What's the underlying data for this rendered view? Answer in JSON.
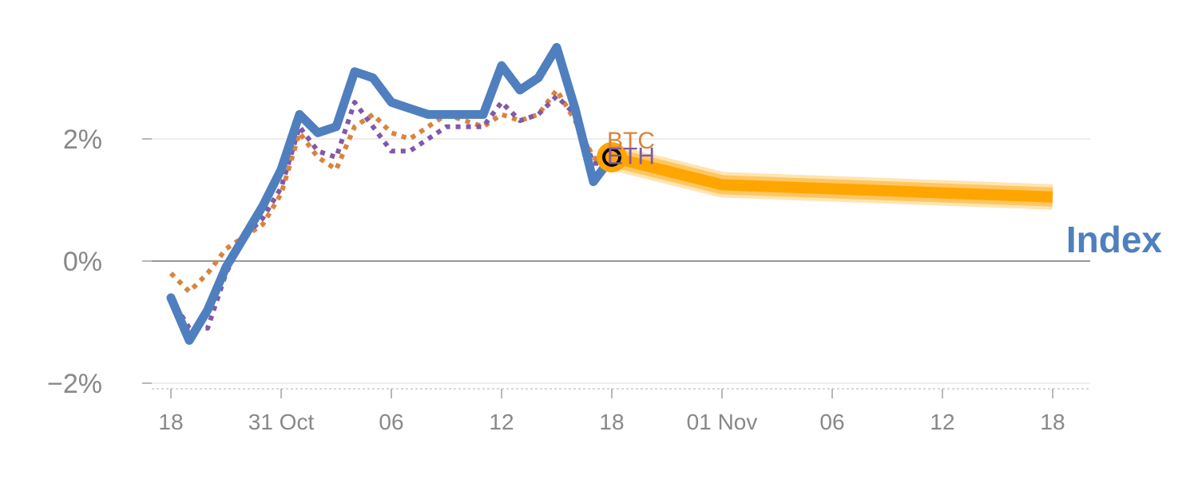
{
  "chart_data": {
    "type": "line",
    "title": "",
    "xlabel": "",
    "ylabel": "",
    "ylim": [
      -2,
      4
    ],
    "y_unit": "%",
    "grid": true,
    "y_ticks": [
      {
        "value": -2,
        "label": "−2%"
      },
      {
        "value": 0,
        "label": "0%"
      },
      {
        "value": 2,
        "label": "2%"
      }
    ],
    "x_ticks": [
      {
        "x": 0,
        "label": "18"
      },
      {
        "x": 6,
        "label": "31 Oct"
      },
      {
        "x": 12,
        "label": "06"
      },
      {
        "x": 18,
        "label": "12"
      },
      {
        "x": 24,
        "label": "18"
      },
      {
        "x": 30,
        "label": "01 Nov"
      },
      {
        "x": 36,
        "label": "06"
      },
      {
        "x": 42,
        "label": "12"
      },
      {
        "x": 48,
        "label": "18"
      }
    ],
    "series": [
      {
        "name": "BTC",
        "style": "dotted",
        "color": "#D9843B",
        "x": [
          0,
          1,
          2,
          3,
          4,
          5,
          6,
          7,
          8,
          9,
          10,
          11,
          12,
          13,
          14,
          15,
          16,
          17,
          18,
          19,
          20,
          21,
          22,
          23,
          24
        ],
        "values": [
          -0.2,
          -0.5,
          -0.2,
          0.2,
          0.4,
          0.6,
          1.1,
          2.1,
          1.7,
          1.5,
          2.2,
          2.4,
          2.1,
          2.0,
          2.2,
          2.4,
          2.3,
          2.2,
          2.4,
          2.3,
          2.4,
          2.8,
          2.3,
          1.7,
          1.5
        ]
      },
      {
        "name": "ETH",
        "style": "dotted",
        "color": "#8159A8",
        "x": [
          0,
          1,
          2,
          3,
          4,
          5,
          6,
          7,
          8,
          9,
          10,
          11,
          12,
          13,
          14,
          15,
          16,
          17,
          18,
          19,
          20,
          21,
          22,
          23,
          24
        ],
        "values": [
          -0.6,
          -1.1,
          -1.1,
          -0.2,
          0.4,
          0.7,
          1.2,
          2.2,
          1.8,
          1.7,
          2.6,
          2.2,
          1.8,
          1.8,
          2.0,
          2.2,
          2.2,
          2.2,
          2.6,
          2.3,
          2.4,
          2.7,
          2.4,
          1.6,
          1.6
        ]
      },
      {
        "name": "Index",
        "style": "solid",
        "color": "#4F7FBE",
        "x": [
          0,
          1,
          2,
          3,
          4,
          5,
          6,
          7,
          8,
          9,
          10,
          11,
          12,
          13,
          14,
          15,
          16,
          17,
          18,
          19,
          20,
          21,
          22,
          23,
          24
        ],
        "values": [
          -0.6,
          -1.3,
          -0.8,
          -0.1,
          0.4,
          0.9,
          1.5,
          2.4,
          2.1,
          2.2,
          3.1,
          3.0,
          2.6,
          2.5,
          2.4,
          2.4,
          2.4,
          2.4,
          3.2,
          2.8,
          3.0,
          3.5,
          2.5,
          1.3,
          1.7
        ]
      }
    ],
    "forecast": {
      "color": "#FFA500",
      "x": [
        24,
        30,
        48
      ],
      "values": [
        1.7,
        1.25,
        1.05
      ]
    },
    "labels": {
      "btc": "BTC",
      "eth": "ETH",
      "index": "Index"
    }
  }
}
